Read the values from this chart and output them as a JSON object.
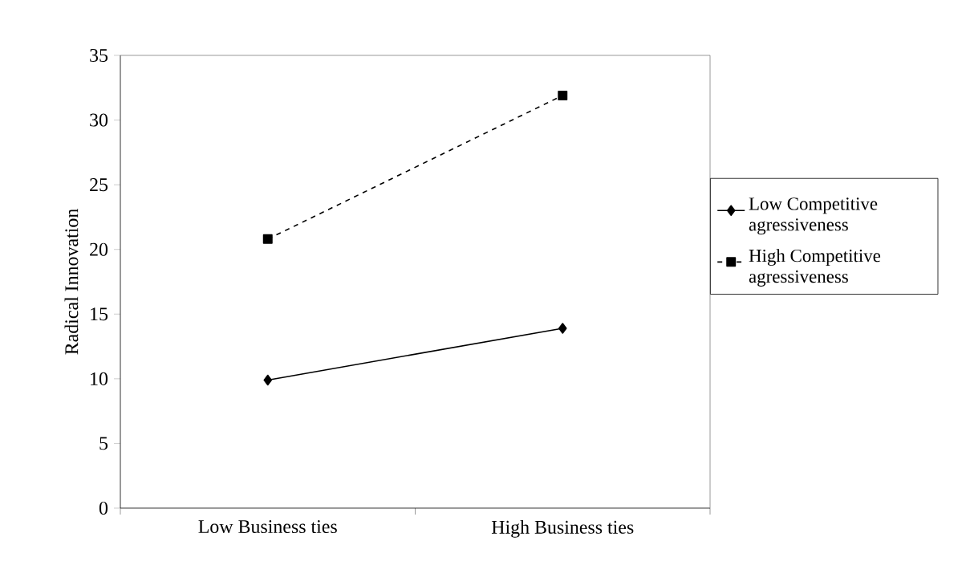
{
  "chart_data": {
    "type": "line",
    "ylabel": "Radical Innovation",
    "categories": [
      "Low Business ties",
      "High Business ties"
    ],
    "series": [
      {
        "name": "Low Competitive agressiveness",
        "color": "#000000",
        "values": [
          9.9,
          13.9
        ],
        "marker": "diamond",
        "line_style": "solid"
      },
      {
        "name": "High Competitive agressiveness",
        "color": "#000000",
        "values": [
          20.8,
          31.9
        ],
        "marker": "square",
        "line_style": "dashed"
      }
    ],
    "ylim": [
      0,
      35
    ],
    "yticks": [
      0,
      5,
      10,
      15,
      20,
      25,
      30,
      35
    ],
    "grid": false,
    "legend": "right"
  }
}
